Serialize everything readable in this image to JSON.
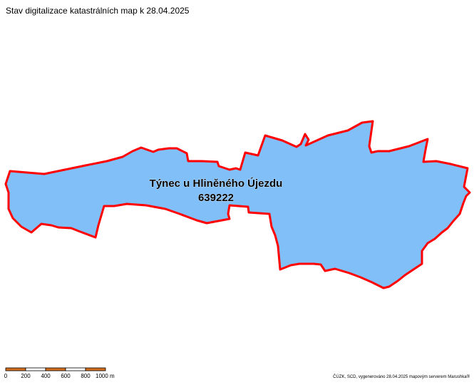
{
  "map": {
    "title": "Stav digitalizace katastrálních map k 28.04.2025",
    "parcel": {
      "name": "Týnec u Hliněného Újezdu",
      "code": "639222",
      "fill_color": "#80bff8",
      "border_color": "#ff0000"
    },
    "scale_bar": {
      "colors": [
        "#d26e1e",
        "#ffffff"
      ],
      "labels": [
        "0",
        "200",
        "400",
        "600",
        "800",
        "1000 m"
      ]
    },
    "credit": "ČÚZK, SCD, vygenerováno 28.04.2025 mapovým serverem Marushka®"
  }
}
